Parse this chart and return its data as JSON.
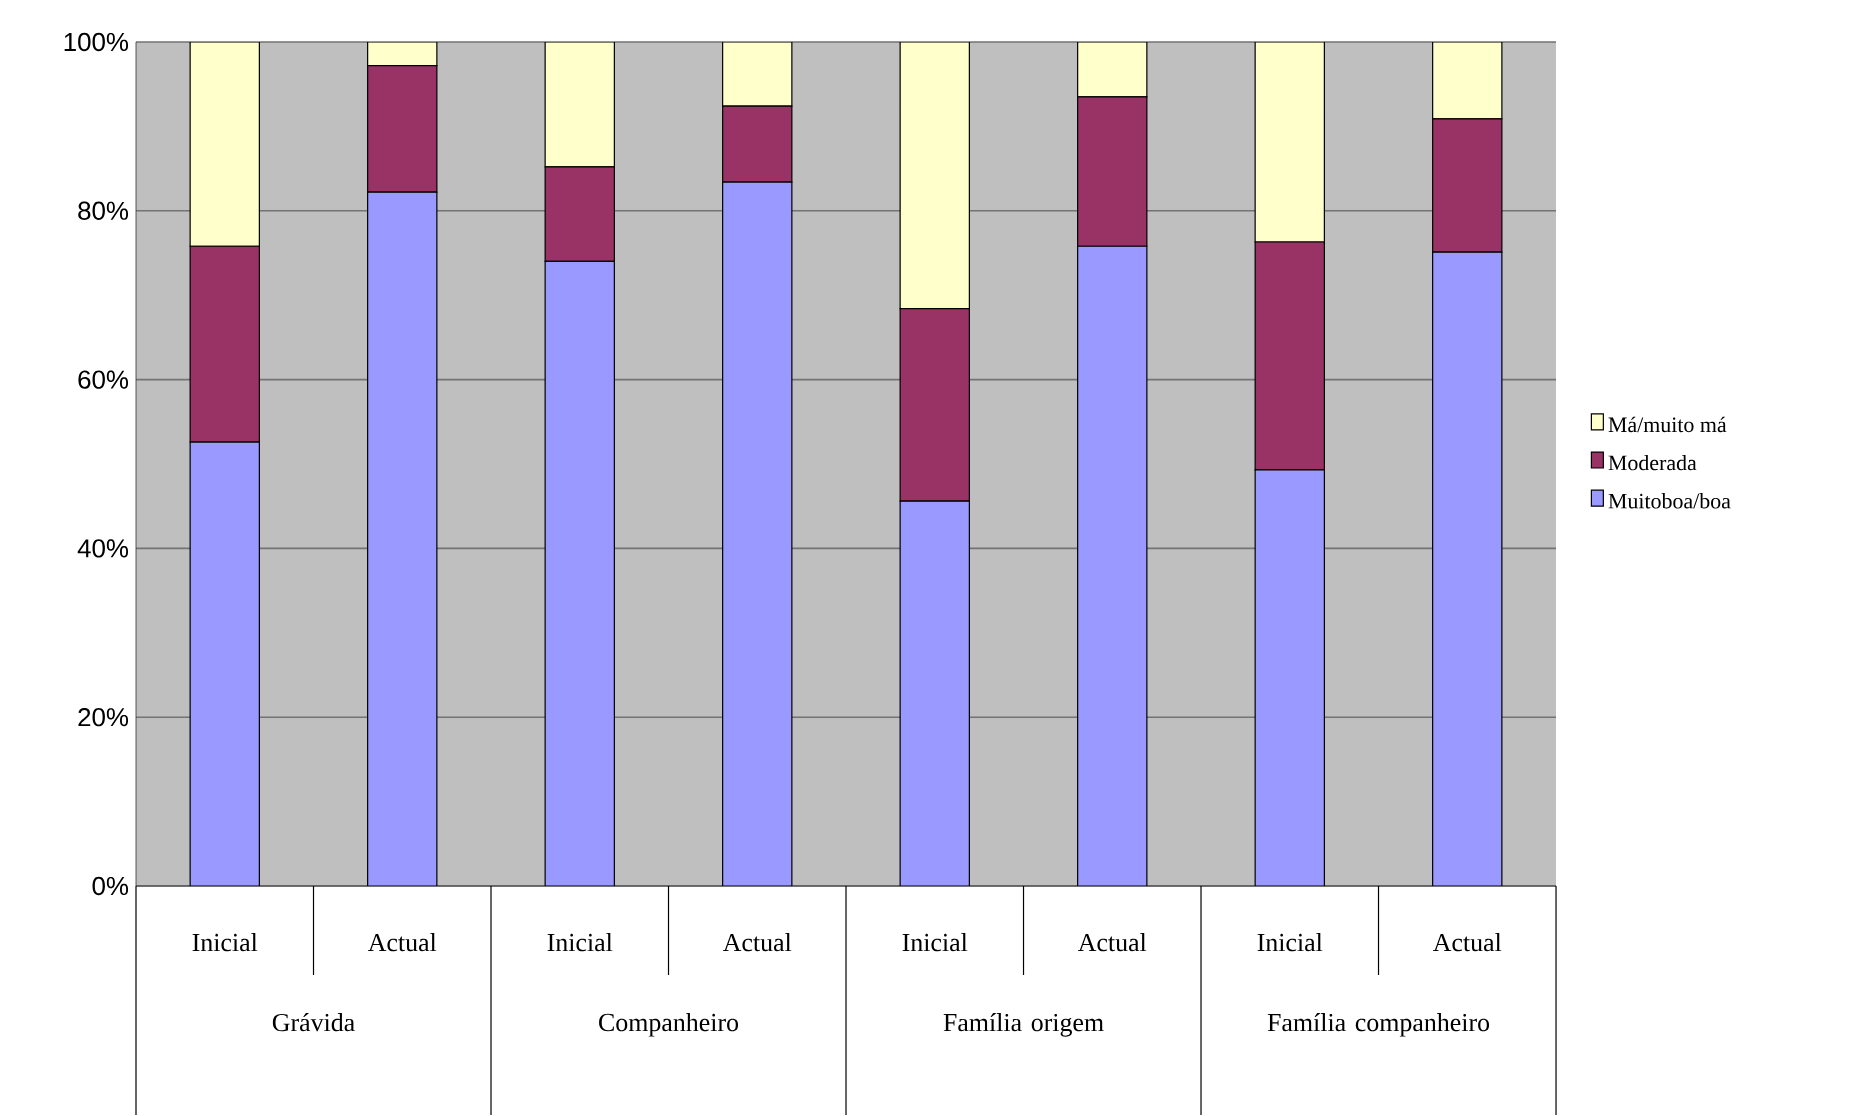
{
  "chart_data": {
    "type": "bar",
    "stacked": true,
    "categories": [
      "Inicial",
      "Actual",
      "Inicial",
      "Actual",
      "Inicial",
      "Actual",
      "Inicial",
      "Actual"
    ],
    "series": [
      {
        "name": "Muitoboa/boa",
        "color": "#9999ff",
        "values": [
          52.6,
          82.2,
          74.0,
          83.4,
          45.6,
          75.8,
          49.3,
          75.1
        ]
      },
      {
        "name": "Moderada",
        "color": "#993366",
        "values": [
          23.2,
          15.0,
          11.2,
          9.0,
          22.8,
          17.7,
          27.0,
          15.8
        ]
      },
      {
        "name": "Má/muito má",
        "color": "#ffffcc",
        "values": [
          24.2,
          2.8,
          14.8,
          7.6,
          31.6,
          6.5,
          23.7,
          9.1
        ]
      }
    ],
    "ylim": [
      0,
      100
    ],
    "yticks": [
      {
        "value": 0,
        "label": "0%"
      },
      {
        "value": 20,
        "label": "20%"
      },
      {
        "value": 40,
        "label": "40%"
      },
      {
        "value": 60,
        "label": "60%"
      },
      {
        "value": 80,
        "label": "80%"
      },
      {
        "value": 100,
        "label": "100%"
      }
    ],
    "grid": "y",
    "legend": "right",
    "annotations": [
      "Grávida",
      "Companheiro",
      "Família origem",
      "Família companheiro"
    ]
  }
}
